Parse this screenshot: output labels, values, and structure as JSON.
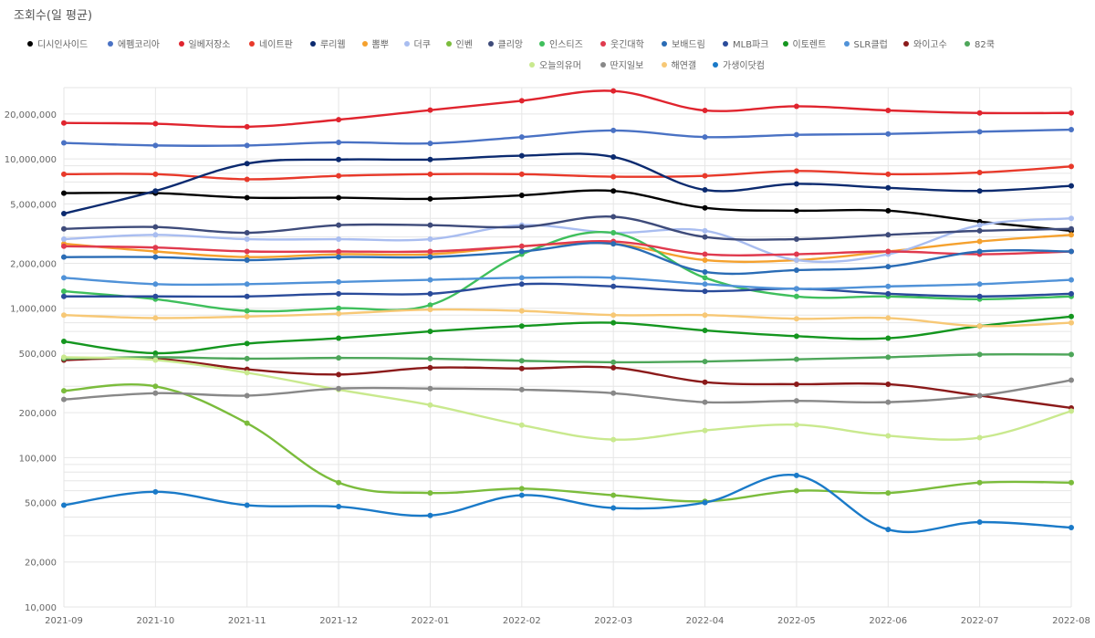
{
  "chart_data": {
    "type": "line",
    "title": "조회수(일 평균)",
    "xlabel": "",
    "ylabel": "",
    "yscale": "log",
    "ylim": [
      10000,
      30000000
    ],
    "yticks": [
      10000,
      20000,
      50000,
      100000,
      200000,
      500000,
      1000000,
      2000000,
      5000000,
      10000000,
      20000000
    ],
    "ytick_labels": [
      "10,000",
      "20,000",
      "50,000",
      "100,000",
      "200,000",
      "500,000",
      "1,000,000",
      "2,000,000",
      "5,000,000",
      "10,000,000",
      "20,000,000"
    ],
    "x": [
      "2021-09",
      "2021-10",
      "2021-11",
      "2021-12",
      "2022-01",
      "2022-02",
      "2022-03",
      "2022-04",
      "2022-05",
      "2022-06",
      "2022-07",
      "2022-08"
    ],
    "series": [
      {
        "name": "디시인사이드",
        "color": "#000000",
        "values": [
          5900000,
          5900000,
          5500000,
          5500000,
          5400000,
          5700000,
          6100000,
          4700000,
          4500000,
          4500000,
          3800000,
          3300000
        ]
      },
      {
        "name": "에펨코리아",
        "color": "#4a72c4",
        "values": [
          12800000,
          12300000,
          12300000,
          12900000,
          12700000,
          14000000,
          15500000,
          14000000,
          14500000,
          14700000,
          15200000,
          15700000
        ]
      },
      {
        "name": "일베저장소",
        "color": "#e0242e",
        "values": [
          17400000,
          17200000,
          16400000,
          18300000,
          21200000,
          24500000,
          28500000,
          21100000,
          22500000,
          21100000,
          20300000,
          20300000
        ]
      },
      {
        "name": "네이트판",
        "color": "#e8392a",
        "values": [
          7900000,
          7900000,
          7300000,
          7700000,
          7900000,
          7900000,
          7600000,
          7700000,
          8300000,
          7900000,
          8100000,
          8900000
        ]
      },
      {
        "name": "루리웹",
        "color": "#0b2a6f",
        "values": [
          4300000,
          6100000,
          9300000,
          9900000,
          9900000,
          10500000,
          10300000,
          6200000,
          6800000,
          6400000,
          6100000,
          6600000
        ]
      },
      {
        "name": "뽐뿌",
        "color": "#f5a12e",
        "values": [
          2700000,
          2400000,
          2200000,
          2300000,
          2300000,
          2600000,
          2700000,
          2100000,
          2100000,
          2400000,
          2800000,
          3100000
        ]
      },
      {
        "name": "더쿠",
        "color": "#a9bdf0",
        "values": [
          2900000,
          3100000,
          2900000,
          2900000,
          2900000,
          3600000,
          3200000,
          3300000,
          2100000,
          2300000,
          3600000,
          4000000
        ]
      },
      {
        "name": "인벤",
        "color": "#7bbc3c",
        "values": [
          280000,
          300000,
          170000,
          68000,
          58000,
          62000,
          56000,
          51000,
          60000,
          58000,
          68000,
          68000
        ]
      },
      {
        "name": "클리앙",
        "color": "#3e4b7a",
        "values": [
          3400000,
          3500000,
          3200000,
          3600000,
          3600000,
          3500000,
          4100000,
          3000000,
          2900000,
          3100000,
          3300000,
          3400000
        ]
      },
      {
        "name": "인스티즈",
        "color": "#3fbf5c",
        "values": [
          1300000,
          1150000,
          960000,
          1000000,
          1050000,
          2300000,
          3200000,
          1600000,
          1200000,
          1200000,
          1150000,
          1200000
        ]
      },
      {
        "name": "웃긴대학",
        "color": "#e03a4e",
        "values": [
          2600000,
          2550000,
          2400000,
          2400000,
          2400000,
          2600000,
          2800000,
          2300000,
          2300000,
          2400000,
          2300000,
          2400000
        ]
      },
      {
        "name": "보배드림",
        "color": "#2a6cb5",
        "values": [
          2200000,
          2200000,
          2100000,
          2200000,
          2200000,
          2400000,
          2700000,
          1750000,
          1800000,
          1900000,
          2400000,
          2400000
        ]
      },
      {
        "name": "MLB파크",
        "color": "#2a4b9a",
        "values": [
          1200000,
          1200000,
          1200000,
          1250000,
          1250000,
          1450000,
          1400000,
          1300000,
          1350000,
          1250000,
          1200000,
          1250000
        ]
      },
      {
        "name": "이토렌트",
        "color": "#14961f",
        "values": [
          600000,
          500000,
          580000,
          630000,
          700000,
          760000,
          800000,
          710000,
          650000,
          630000,
          760000,
          880000
        ]
      },
      {
        "name": "SLR클럽",
        "color": "#5092d8",
        "values": [
          1600000,
          1450000,
          1450000,
          1500000,
          1550000,
          1600000,
          1600000,
          1450000,
          1350000,
          1400000,
          1450000,
          1550000
        ]
      },
      {
        "name": "와이고수",
        "color": "#8b1a1a",
        "values": [
          450000,
          460000,
          390000,
          360000,
          400000,
          395000,
          400000,
          320000,
          310000,
          310000,
          260000,
          215000
        ]
      },
      {
        "name": "82쿡",
        "color": "#4ea65a",
        "values": [
          460000,
          470000,
          460000,
          465000,
          460000,
          445000,
          435000,
          440000,
          455000,
          470000,
          490000,
          490000
        ]
      },
      {
        "name": "오늘의유머",
        "color": "#c9e98e",
        "values": [
          470000,
          450000,
          370000,
          285000,
          225000,
          165000,
          132000,
          152000,
          166000,
          140000,
          136000,
          205000
        ]
      },
      {
        "name": "딴지일보",
        "color": "#888888",
        "values": [
          245000,
          270000,
          260000,
          290000,
          290000,
          285000,
          270000,
          235000,
          240000,
          235000,
          260000,
          330000
        ]
      },
      {
        "name": "해연갤",
        "color": "#f7c876",
        "values": [
          900000,
          860000,
          880000,
          920000,
          980000,
          960000,
          900000,
          900000,
          850000,
          860000,
          760000,
          800000
        ]
      },
      {
        "name": "가생이닷컴",
        "color": "#1a7ac8",
        "values": [
          48000,
          59000,
          48000,
          47000,
          41000,
          56000,
          46000,
          50000,
          76000,
          33000,
          37000,
          34000
        ]
      }
    ]
  }
}
